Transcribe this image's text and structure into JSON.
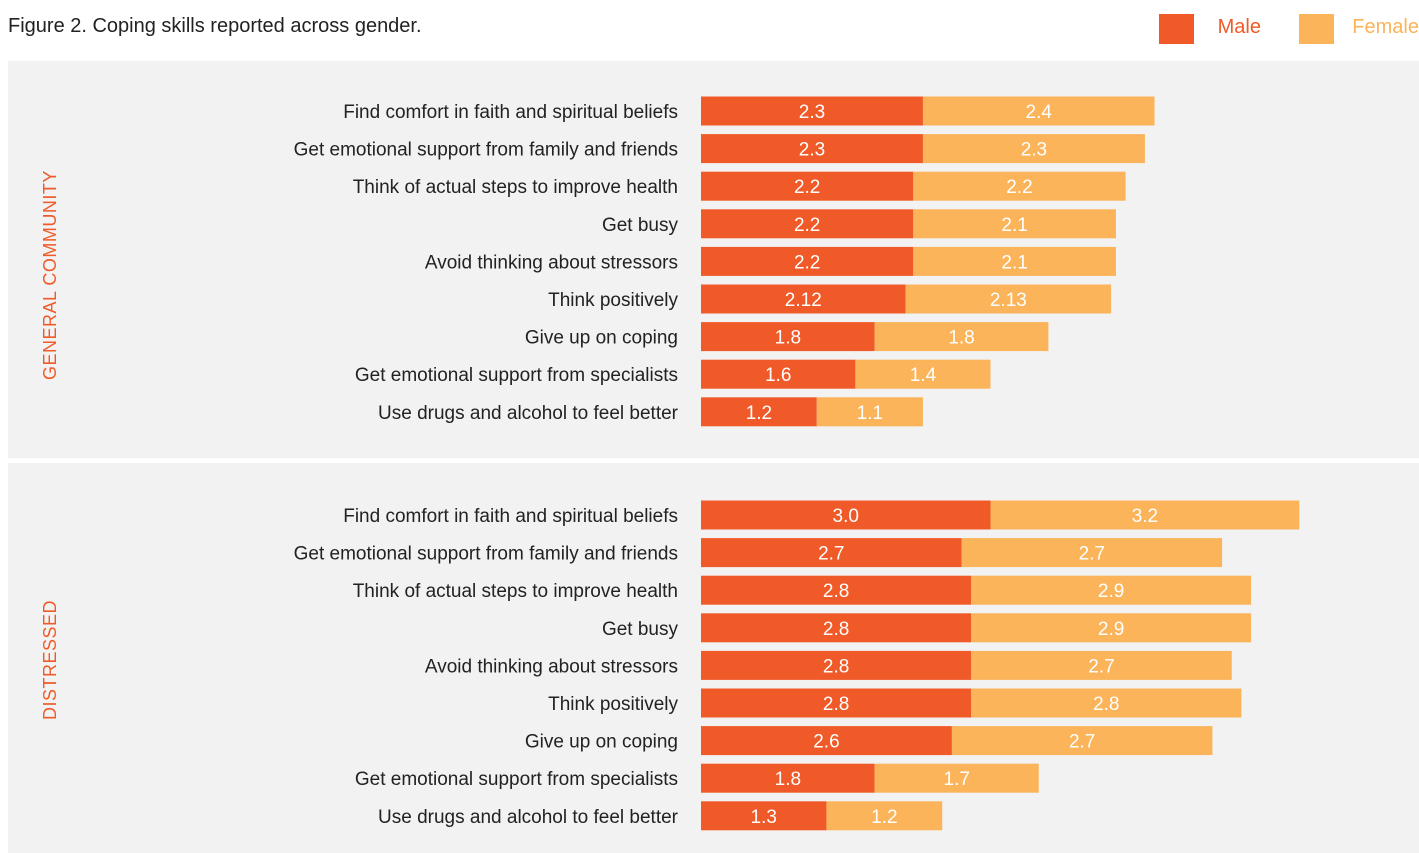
{
  "title": "Figure 2. Coping skills reported across gender.",
  "colors": {
    "male": "#f05a28",
    "female": "#fbb45a",
    "panel_bg": "#f2f2f2",
    "group_label": "#f05a28"
  },
  "legend": [
    {
      "label": "Male",
      "color": "#f05a28"
    },
    {
      "label": "Female",
      "color": "#fbb45a"
    }
  ],
  "chart_data": {
    "type": "bar",
    "orientation": "horizontal",
    "stacked": true,
    "series_names": [
      "Male",
      "Female"
    ],
    "categories": [
      "Find comfort in faith and spiritual beliefs",
      "Get emotional support from family and friends",
      "Think of actual steps to improve health",
      "Get busy",
      "Avoid thinking about stressors",
      "Think positively",
      "Give up on coping",
      "Get emotional support from specialists",
      "Use drugs and alcohol to feel better"
    ],
    "panels": [
      {
        "name": "GENERAL COMMUNITY",
        "male": [
          2.3,
          2.3,
          2.2,
          2.2,
          2.2,
          2.12,
          1.8,
          1.6,
          1.2
        ],
        "female": [
          2.4,
          2.3,
          2.2,
          2.1,
          2.1,
          2.13,
          1.8,
          1.4,
          1.1
        ]
      },
      {
        "name": "DISTRESSED",
        "male": [
          3.0,
          2.7,
          2.8,
          2.8,
          2.8,
          2.8,
          2.6,
          1.8,
          1.3
        ],
        "female": [
          3.2,
          2.7,
          2.9,
          2.9,
          2.7,
          2.8,
          2.7,
          1.7,
          1.2
        ]
      }
    ],
    "labels": {
      "GENERAL COMMUNITY": {
        "male": [
          "2.3",
          "2.3",
          "2.2",
          "2.2",
          "2.2",
          "2.12",
          "1.8",
          "1.6",
          "1.2"
        ],
        "female": [
          "2.4",
          "2.3",
          "2.2",
          "2.1",
          "2.1",
          "2.13",
          "1.8",
          "1.4",
          "1.1"
        ]
      },
      "DISTRESSED": {
        "male": [
          "3.0",
          "2.7",
          "2.8",
          "2.8",
          "2.8",
          "2.8",
          "2.6",
          "1.8",
          "1.3"
        ],
        "female": [
          "3.2",
          "2.7",
          "2.9",
          "2.9",
          "2.7",
          "2.8",
          "2.7",
          "1.7",
          "1.2"
        ]
      }
    },
    "grid": false,
    "legend_position": "top-right"
  }
}
